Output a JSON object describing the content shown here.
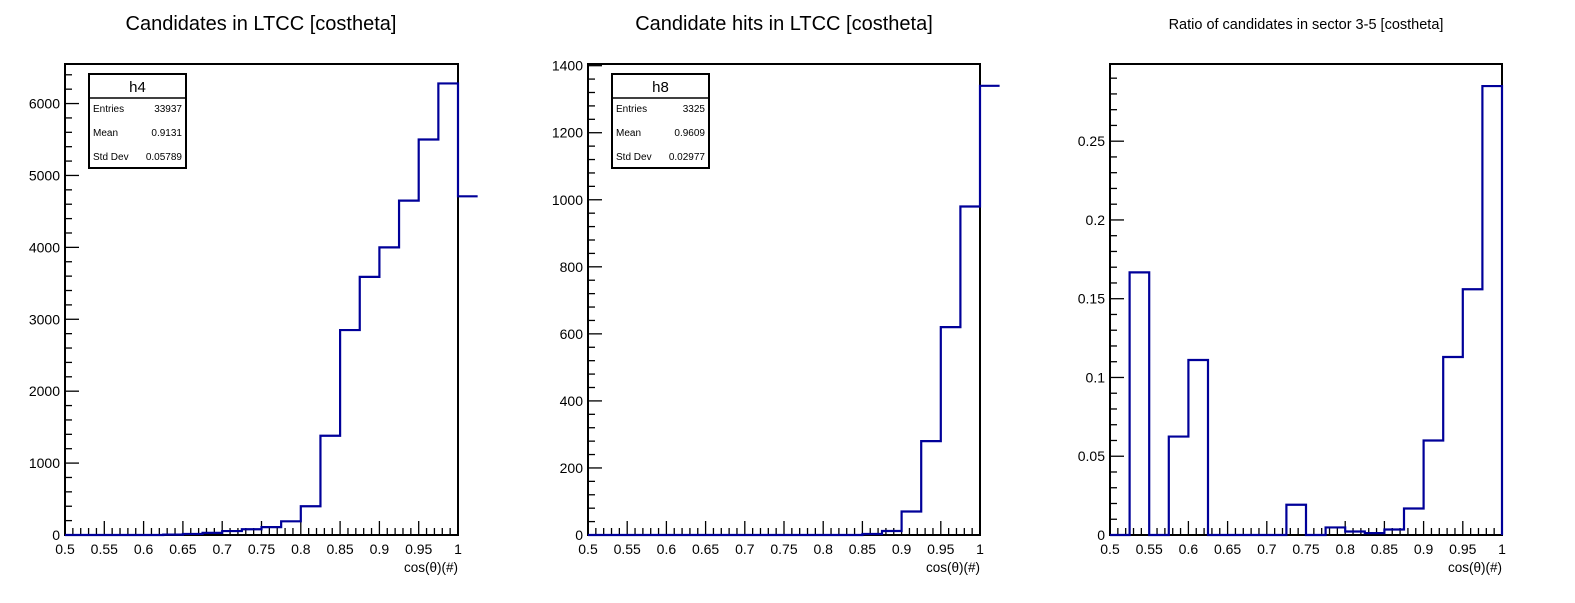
{
  "chart_data": [
    {
      "type": "histogram",
      "title": "Candidates in LTCC [costheta]",
      "xlabel": "cos(θ)(#)",
      "ylabel": "",
      "xlim": [
        0.5,
        1.0
      ],
      "ylim": [
        0,
        6550
      ],
      "xticks": [
        "0.5",
        "0.55",
        "0.6",
        "0.65",
        "0.7",
        "0.75",
        "0.8",
        "0.85",
        "0.9",
        "0.95",
        "1"
      ],
      "yticks": [
        {
          "value": 0,
          "label": "0"
        },
        {
          "value": 1000,
          "label": "1000"
        },
        {
          "value": 2000,
          "label": "2000"
        },
        {
          "value": 3000,
          "label": "3000"
        },
        {
          "value": 4000,
          "label": "4000"
        },
        {
          "value": 5000,
          "label": "5000"
        },
        {
          "value": 6000,
          "label": "6000"
        }
      ],
      "bin_width": 0.025,
      "bin_edges_start": 0.5,
      "values": [
        0,
        0,
        0,
        0,
        0,
        5,
        15,
        30,
        55,
        80,
        110,
        190,
        400,
        1380,
        2850,
        3590,
        4000,
        4650,
        5500,
        6280,
        4710
      ],
      "line_color": "#000099",
      "stats": {
        "name": "h4",
        "rows": [
          {
            "label": "Entries",
            "value": "33937"
          },
          {
            "label": "Mean",
            "value": "0.9131"
          },
          {
            "label": "Std Dev",
            "value": "0.05789"
          }
        ]
      },
      "title_size": "big"
    },
    {
      "type": "histogram",
      "title": "Candidate hits in LTCC [costheta]",
      "xlabel": "cos(θ)(#)",
      "ylabel": "",
      "xlim": [
        0.5,
        1.0
      ],
      "ylim": [
        0,
        1405
      ],
      "xticks": [
        "0.5",
        "0.55",
        "0.6",
        "0.65",
        "0.7",
        "0.75",
        "0.8",
        "0.85",
        "0.9",
        "0.95",
        "1"
      ],
      "yticks": [
        {
          "value": 0,
          "label": "0"
        },
        {
          "value": 200,
          "label": "200"
        },
        {
          "value": 400,
          "label": "400"
        },
        {
          "value": 600,
          "label": "600"
        },
        {
          "value": 800,
          "label": "800"
        },
        {
          "value": 1000,
          "label": "1000"
        },
        {
          "value": 1200,
          "label": "1200"
        },
        {
          "value": 1400,
          "label": "1400"
        }
      ],
      "bin_width": 0.025,
      "bin_edges_start": 0.5,
      "values": [
        0,
        0,
        0,
        0,
        0,
        0,
        0,
        0,
        0,
        0,
        0,
        0,
        0,
        0,
        3,
        12,
        70,
        280,
        620,
        980,
        1340
      ],
      "line_color": "#000099",
      "stats": {
        "name": "h8",
        "rows": [
          {
            "label": "Entries",
            "value": "3325"
          },
          {
            "label": "Mean",
            "value": "0.9609"
          },
          {
            "label": "Std Dev",
            "value": "0.02977"
          }
        ]
      },
      "title_size": "big"
    },
    {
      "type": "histogram",
      "title": "Ratio of candidates in sector 3-5 [costheta]",
      "xlabel": "cos(θ)(#)",
      "ylabel": "",
      "xlim": [
        0.5,
        1.0
      ],
      "ylim": [
        0,
        0.299
      ],
      "xticks": [
        "0.5",
        "0.55",
        "0.6",
        "0.65",
        "0.7",
        "0.75",
        "0.8",
        "0.85",
        "0.9",
        "0.95",
        "1"
      ],
      "yticks": [
        {
          "value": 0,
          "label": "0"
        },
        {
          "value": 0.05,
          "label": "0.05"
        },
        {
          "value": 0.1,
          "label": "0.1"
        },
        {
          "value": 0.15,
          "label": "0.15"
        },
        {
          "value": 0.2,
          "label": "0.2"
        },
        {
          "value": 0.25,
          "label": "0.25"
        }
      ],
      "bin_width": 0.025,
      "bin_edges_start": 0.5,
      "values": [
        0,
        0.1667,
        0,
        0.0625,
        0.1111,
        0,
        0,
        0,
        0,
        0.0192,
        0,
        0.0048,
        0.0022,
        0.0012,
        0.0035,
        0.0168,
        0.06,
        0.113,
        0.156,
        0.285,
        null
      ],
      "line_color": "#000099",
      "stats": null,
      "title_size": "small"
    }
  ]
}
